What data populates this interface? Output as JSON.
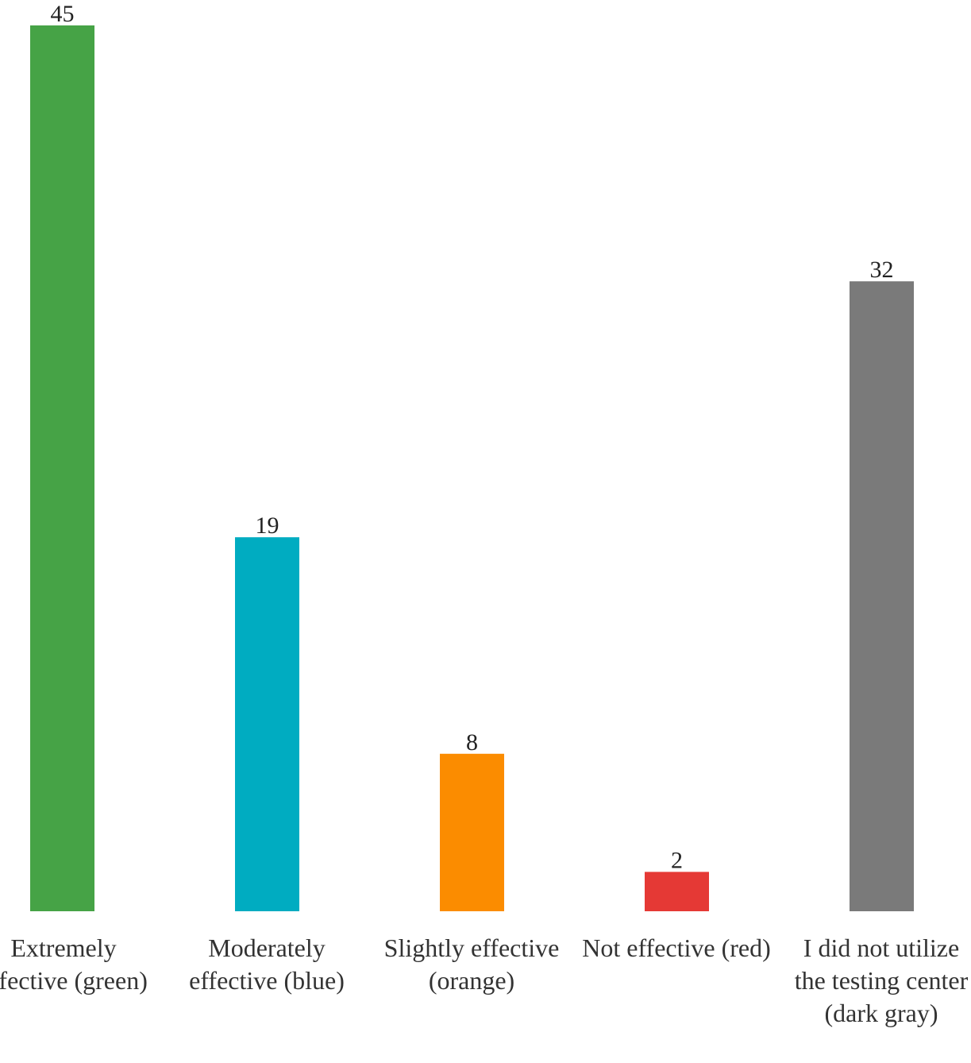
{
  "chart_data": {
    "type": "bar",
    "title": "",
    "xlabel": "",
    "ylabel": "",
    "ylim": [
      0,
      45
    ],
    "grid": false,
    "categories": [
      "Extremely effective (green)",
      "Moderately effective (blue)",
      "Slightly effective (orange)",
      "Not effective (red)",
      "I did not utilize the testing center (dark gray)"
    ],
    "values": [
      45,
      19,
      8,
      2,
      32
    ],
    "value_labels": [
      "45",
      "19",
      "8",
      "2",
      "32"
    ],
    "colors": [
      "#46a346",
      "#00acc1",
      "#fb8c00",
      "#e53935",
      "#7a7a7a"
    ]
  }
}
